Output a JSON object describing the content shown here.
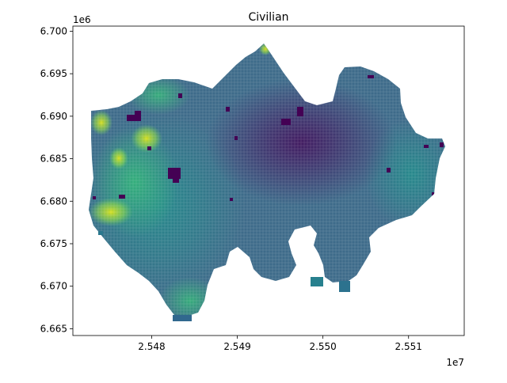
{
  "chart_data": {
    "type": "heatmap",
    "title": "Civilian",
    "xlabel": "",
    "ylabel": "",
    "x_offset_label": "1e7",
    "y_offset_label": "1e6",
    "x_ticks": [
      2.548,
      2.549,
      2.55,
      2.551
    ],
    "x_tick_labels": [
      "2.548",
      "2.549",
      "2.550",
      "2.551"
    ],
    "y_ticks": [
      6.665,
      6.67,
      6.675,
      6.68,
      6.685,
      6.69,
      6.695,
      6.7
    ],
    "y_tick_labels": [
      "6.665",
      "6.670",
      "6.675",
      "6.680",
      "6.685",
      "6.690",
      "6.695",
      "6.700"
    ],
    "xlim": [
      2.54708,
      2.55165
    ],
    "ylim": [
      6.6642,
      6.7006
    ],
    "colormap": "viridis",
    "colors": [
      "#440154",
      "#3b528b",
      "#21918c",
      "#5ec962",
      "#fde725"
    ],
    "grid": false,
    "legend": "none"
  }
}
